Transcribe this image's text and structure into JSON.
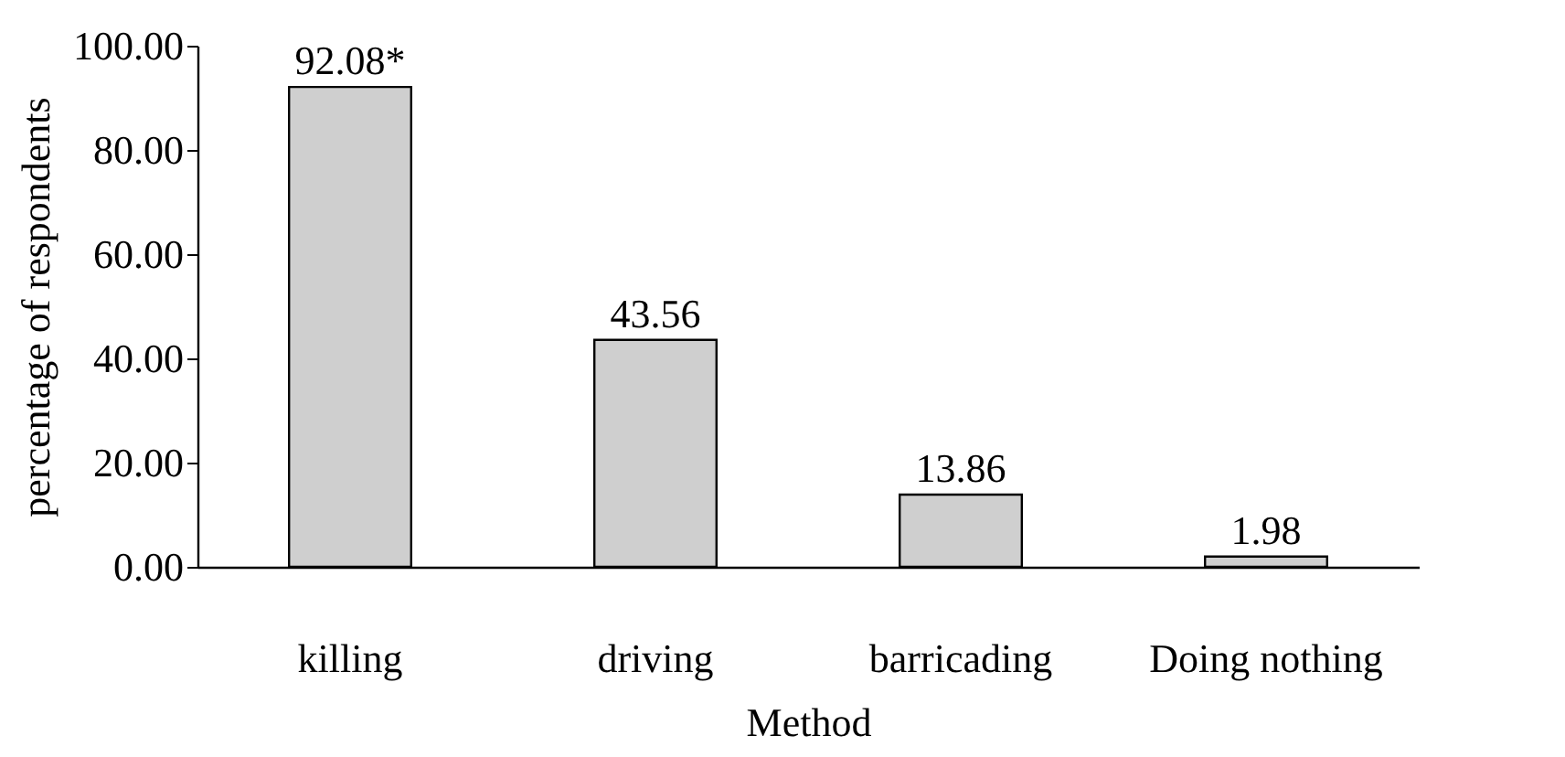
{
  "chart_data": {
    "type": "bar",
    "xlabel": "Method",
    "ylabel": "percentage of respondents",
    "categories": [
      "killing",
      "driving",
      "barricading",
      "Doing nothing"
    ],
    "values": [
      92.08,
      43.56,
      13.86,
      1.98
    ],
    "value_labels": [
      "92.08*",
      "43.56",
      "13.86",
      "1.98"
    ],
    "color": "#cfcfcf",
    "ylim": [
      0,
      100
    ],
    "yticks": [
      {
        "value": 0,
        "label": "0.00"
      },
      {
        "value": 20,
        "label": "20.00"
      },
      {
        "value": 40,
        "label": "40.00"
      },
      {
        "value": 60,
        "label": "60.00"
      },
      {
        "value": 80,
        "label": "80.00"
      },
      {
        "value": 100,
        "label": "100.00"
      }
    ],
    "grid": false
  }
}
